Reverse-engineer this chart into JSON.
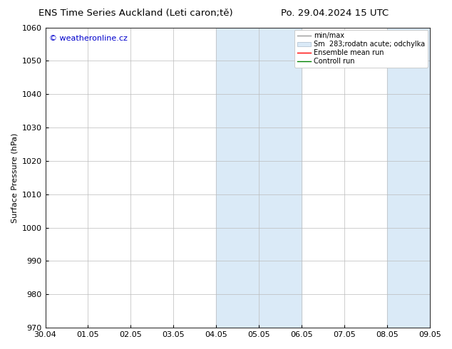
{
  "title_left": "ENS Time Series Auckland (Leti caron;tě)",
  "title_right": "Po. 29.04.2024 15 UTC",
  "ylabel": "Surface Pressure (hPa)",
  "ylim": [
    970,
    1060
  ],
  "yticks": [
    970,
    980,
    990,
    1000,
    1010,
    1020,
    1030,
    1040,
    1050,
    1060
  ],
  "xtick_labels": [
    "30.04",
    "01.05",
    "02.05",
    "03.05",
    "04.05",
    "05.05",
    "06.05",
    "07.05",
    "08.05",
    "09.05"
  ],
  "watermark": "© weatheronline.cz",
  "watermark_color": "#0000cc",
  "shade_color": "#daeaf7",
  "background_color": "#ffffff",
  "grid_color": "#bbbbbb",
  "font_size": 8,
  "title_font_size": 9.5
}
